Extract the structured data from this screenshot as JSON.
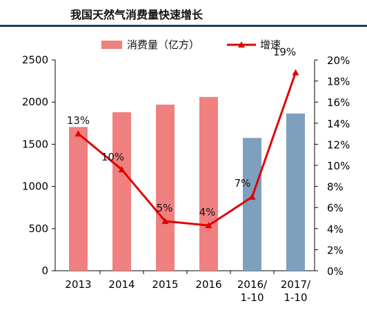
{
  "chart_data": {
    "type": "bar",
    "title": "我国天然气消费量快速增长",
    "categories": [
      "2013",
      "2014",
      "2015",
      "2016",
      "2016/\n1-10",
      "2017/\n1-10"
    ],
    "series": [
      {
        "name": "消费量（亿方）",
        "type": "bar",
        "axis": "left",
        "values": [
          1705,
          1880,
          1970,
          2060,
          1575,
          1865
        ],
        "colors": [
          "#f08080",
          "#f08080",
          "#f08080",
          "#f08080",
          "#7f9fbf",
          "#7f9fbf"
        ]
      },
      {
        "name": "增速",
        "type": "line",
        "axis": "right",
        "values": [
          13,
          9.6,
          4.7,
          4.3,
          7,
          18.8
        ],
        "labels": [
          "13%",
          "10%",
          "5%",
          "4%",
          "7%",
          "19%"
        ],
        "color": "#e00000"
      }
    ],
    "y_left": {
      "min": 0,
      "max": 2500,
      "ticks": [
        0,
        500,
        1000,
        1500,
        2000,
        2500
      ]
    },
    "y_right": {
      "min": 0,
      "max": 20,
      "ticks": [
        "0%",
        "2%",
        "4%",
        "6%",
        "8%",
        "10%",
        "12%",
        "14%",
        "16%",
        "18%",
        "20%"
      ]
    },
    "legend": "top",
    "grid": false
  }
}
